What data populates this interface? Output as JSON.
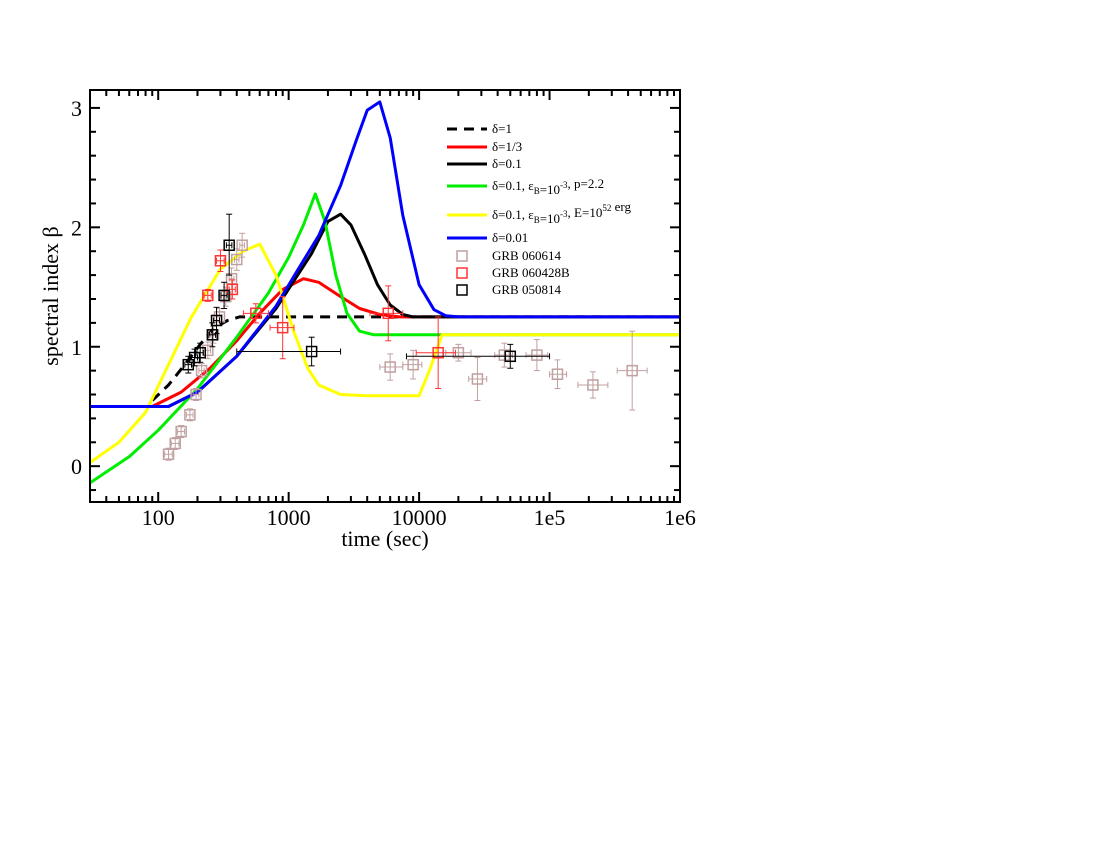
{
  "chart_data": {
    "type": "line",
    "title": "",
    "xlabel": "time (sec)",
    "ylabel": "spectral index β",
    "x_scale": "log",
    "xlim": [
      30,
      1000000
    ],
    "ylim": [
      -0.3,
      3.15
    ],
    "x_ticks": [
      {
        "value": 100,
        "label": "100"
      },
      {
        "value": 1000,
        "label": "1000"
      },
      {
        "value": 10000,
        "label": "10000"
      },
      {
        "value": 100000,
        "label": "1e5"
      },
      {
        "value": 1000000,
        "label": "1e6"
      }
    ],
    "y_ticks": [
      {
        "value": 0,
        "label": "0"
      },
      {
        "value": 1,
        "label": "1"
      },
      {
        "value": 2,
        "label": "2"
      },
      {
        "value": 3,
        "label": "3"
      }
    ],
    "grid": false,
    "legend_position": "top-right",
    "series": [
      {
        "name": "δ=1",
        "color": "#000000",
        "dashed": true,
        "points": [
          [
            90,
            0.55
          ],
          [
            120,
            0.68
          ],
          [
            160,
            0.85
          ],
          [
            210,
            1.02
          ],
          [
            270,
            1.16
          ],
          [
            340,
            1.22
          ],
          [
            420,
            1.25
          ],
          [
            1000000,
            1.25
          ]
        ]
      },
      {
        "name": "δ=1/3",
        "color": "#ff0000",
        "dashed": false,
        "points": [
          [
            90,
            0.5
          ],
          [
            150,
            0.62
          ],
          [
            250,
            0.82
          ],
          [
            400,
            1.05
          ],
          [
            600,
            1.28
          ],
          [
            900,
            1.48
          ],
          [
            1300,
            1.57
          ],
          [
            1700,
            1.54
          ],
          [
            2500,
            1.42
          ],
          [
            3500,
            1.32
          ],
          [
            5000,
            1.27
          ],
          [
            7000,
            1.25
          ],
          [
            1000000,
            1.25
          ]
        ]
      },
      {
        "name": "δ=0.1",
        "color": "#000000",
        "dashed": false,
        "points": [
          [
            30,
            0.5
          ],
          [
            120,
            0.5
          ],
          [
            200,
            0.62
          ],
          [
            400,
            0.92
          ],
          [
            800,
            1.32
          ],
          [
            1500,
            1.78
          ],
          [
            2000,
            2.05
          ],
          [
            2500,
            2.11
          ],
          [
            3000,
            2.02
          ],
          [
            3800,
            1.78
          ],
          [
            4800,
            1.52
          ],
          [
            6000,
            1.35
          ],
          [
            7500,
            1.27
          ],
          [
            9000,
            1.25
          ],
          [
            1000000,
            1.25
          ]
        ]
      },
      {
        "name": "δ=0.1, εB=10^-3, p=2.2",
        "color": "#00ee00",
        "dashed": false,
        "points": [
          [
            30,
            -0.14
          ],
          [
            60,
            0.08
          ],
          [
            100,
            0.3
          ],
          [
            200,
            0.65
          ],
          [
            400,
            1.08
          ],
          [
            700,
            1.45
          ],
          [
            1000,
            1.75
          ],
          [
            1300,
            2.02
          ],
          [
            1600,
            2.28
          ],
          [
            1900,
            2.05
          ],
          [
            2300,
            1.6
          ],
          [
            2800,
            1.28
          ],
          [
            3500,
            1.13
          ],
          [
            4500,
            1.1
          ],
          [
            1000000,
            1.1
          ]
        ]
      },
      {
        "name": "δ=0.1, εB=10^-3, E=10^52 erg",
        "color": "#ffff00",
        "dashed": false,
        "points": [
          [
            30,
            0.03
          ],
          [
            50,
            0.2
          ],
          [
            80,
            0.45
          ],
          [
            120,
            0.85
          ],
          [
            180,
            1.25
          ],
          [
            300,
            1.65
          ],
          [
            450,
            1.8
          ],
          [
            600,
            1.86
          ],
          [
            800,
            1.6
          ],
          [
            1100,
            1.12
          ],
          [
            1400,
            0.82
          ],
          [
            1700,
            0.68
          ],
          [
            2500,
            0.6
          ],
          [
            4000,
            0.59
          ],
          [
            10000,
            0.59
          ],
          [
            12000,
            0.8
          ],
          [
            15000,
            1.1
          ],
          [
            1000000,
            1.1
          ]
        ]
      },
      {
        "name": "δ=0.01",
        "color": "#0000ff",
        "dashed": false,
        "points": [
          [
            30,
            0.5
          ],
          [
            120,
            0.5
          ],
          [
            200,
            0.62
          ],
          [
            400,
            0.92
          ],
          [
            800,
            1.34
          ],
          [
            1200,
            1.66
          ],
          [
            1700,
            1.93
          ],
          [
            2500,
            2.35
          ],
          [
            3300,
            2.73
          ],
          [
            4000,
            2.98
          ],
          [
            5000,
            3.05
          ],
          [
            6000,
            2.75
          ],
          [
            7500,
            2.1
          ],
          [
            10000,
            1.52
          ],
          [
            13000,
            1.31
          ],
          [
            16000,
            1.26
          ],
          [
            20000,
            1.25
          ],
          [
            1000000,
            1.25
          ]
        ]
      }
    ],
    "data_series": [
      {
        "name": "GRB 060614",
        "color": "#c0a0a0",
        "points": [
          {
            "x": 120,
            "y": 0.1,
            "xlo": 112,
            "xhi": 128,
            "ylo": 0.05,
            "yhi": 0.15
          },
          {
            "x": 135,
            "y": 0.19,
            "xlo": 126,
            "xhi": 144,
            "ylo": 0.14,
            "yhi": 0.24
          },
          {
            "x": 150,
            "y": 0.29,
            "xlo": 141,
            "xhi": 159,
            "ylo": 0.24,
            "yhi": 0.34
          },
          {
            "x": 175,
            "y": 0.43,
            "xlo": 165,
            "xhi": 185,
            "ylo": 0.38,
            "yhi": 0.48
          },
          {
            "x": 195,
            "y": 0.6,
            "xlo": 185,
            "xhi": 205,
            "ylo": 0.55,
            "yhi": 0.65
          },
          {
            "x": 215,
            "y": 0.8,
            "xlo": 205,
            "xhi": 225,
            "ylo": 0.74,
            "yhi": 0.86
          },
          {
            "x": 240,
            "y": 0.97,
            "xlo": 228,
            "xhi": 252,
            "ylo": 0.9,
            "yhi": 1.04
          },
          {
            "x": 265,
            "y": 1.1,
            "xlo": 252,
            "xhi": 278,
            "ylo": 1.03,
            "yhi": 1.17
          },
          {
            "x": 295,
            "y": 1.25,
            "xlo": 282,
            "xhi": 308,
            "ylo": 1.18,
            "yhi": 1.32
          },
          {
            "x": 330,
            "y": 1.42,
            "xlo": 315,
            "xhi": 345,
            "ylo": 1.34,
            "yhi": 1.5
          },
          {
            "x": 365,
            "y": 1.57,
            "xlo": 350,
            "xhi": 380,
            "ylo": 1.48,
            "yhi": 1.66
          },
          {
            "x": 400,
            "y": 1.73,
            "xlo": 384,
            "xhi": 416,
            "ylo": 1.64,
            "yhi": 1.82
          },
          {
            "x": 440,
            "y": 1.85,
            "xlo": 422,
            "xhi": 458,
            "ylo": 1.75,
            "yhi": 1.95
          },
          {
            "x": 6000,
            "y": 0.83,
            "xlo": 5000,
            "xhi": 7500,
            "ylo": 0.72,
            "yhi": 0.94
          },
          {
            "x": 9000,
            "y": 0.85,
            "xlo": 7500,
            "xhi": 10500,
            "ylo": 0.73,
            "yhi": 0.97
          },
          {
            "x": 20000,
            "y": 0.95,
            "xlo": 16000,
            "xhi": 25000,
            "ylo": 0.88,
            "yhi": 1.02
          },
          {
            "x": 28000,
            "y": 0.73,
            "xlo": 24000,
            "xhi": 33000,
            "ylo": 0.55,
            "yhi": 0.91
          },
          {
            "x": 45000,
            "y": 0.93,
            "xlo": 38000,
            "xhi": 52000,
            "ylo": 0.83,
            "yhi": 1.03
          },
          {
            "x": 80000,
            "y": 0.93,
            "xlo": 66000,
            "xhi": 97000,
            "ylo": 0.8,
            "yhi": 1.06
          },
          {
            "x": 115000,
            "y": 0.77,
            "xlo": 100000,
            "xhi": 135000,
            "ylo": 0.65,
            "yhi": 0.89
          },
          {
            "x": 215000,
            "y": 0.68,
            "xlo": 165000,
            "xhi": 280000,
            "ylo": 0.57,
            "yhi": 0.79
          },
          {
            "x": 430000,
            "y": 0.8,
            "xlo": 330000,
            "xhi": 560000,
            "ylo": 0.47,
            "yhi": 1.13
          }
        ]
      },
      {
        "name": "GRB 060428B",
        "color": "#ff3333",
        "points": [
          {
            "x": 240,
            "y": 1.43,
            "xlo": 225,
            "xhi": 255,
            "ylo": 1.38,
            "yhi": 1.48
          },
          {
            "x": 300,
            "y": 1.72,
            "xlo": 280,
            "xhi": 320,
            "ylo": 1.63,
            "yhi": 1.81
          },
          {
            "x": 370,
            "y": 1.48,
            "xlo": 350,
            "xhi": 390,
            "ylo": 1.4,
            "yhi": 1.56
          },
          {
            "x": 560,
            "y": 1.28,
            "xlo": 450,
            "xhi": 700,
            "ylo": 1.2,
            "yhi": 1.36
          },
          {
            "x": 900,
            "y": 1.16,
            "xlo": 720,
            "xhi": 1100,
            "ylo": 0.9,
            "yhi": 1.42
          },
          {
            "x": 5800,
            "y": 1.28,
            "xlo": 4200,
            "xhi": 7500,
            "ylo": 1.05,
            "yhi": 1.51
          },
          {
            "x": 14000,
            "y": 0.95,
            "xlo": 9500,
            "xhi": 19000,
            "ylo": 0.65,
            "yhi": 1.25
          }
        ]
      },
      {
        "name": "GRB 050814",
        "color": "#000000",
        "points": [
          {
            "x": 170,
            "y": 0.85,
            "xlo": 160,
            "xhi": 180,
            "ylo": 0.78,
            "yhi": 0.92
          },
          {
            "x": 190,
            "y": 0.91,
            "xlo": 180,
            "xhi": 200,
            "ylo": 0.84,
            "yhi": 0.98
          },
          {
            "x": 210,
            "y": 0.95,
            "xlo": 198,
            "xhi": 222,
            "ylo": 0.87,
            "yhi": 1.03
          },
          {
            "x": 260,
            "y": 1.1,
            "xlo": 245,
            "xhi": 275,
            "ylo": 1.0,
            "yhi": 1.2
          },
          {
            "x": 280,
            "y": 1.22,
            "xlo": 265,
            "xhi": 295,
            "ylo": 1.11,
            "yhi": 1.33
          },
          {
            "x": 320,
            "y": 1.43,
            "xlo": 303,
            "xhi": 337,
            "ylo": 1.32,
            "yhi": 1.54
          },
          {
            "x": 350,
            "y": 1.85,
            "xlo": 333,
            "xhi": 367,
            "ylo": 1.6,
            "yhi": 2.11
          },
          {
            "x": 1500,
            "y": 0.96,
            "xlo": 400,
            "xhi": 2500,
            "ylo": 0.84,
            "yhi": 1.08
          },
          {
            "x": 50000,
            "y": 0.92,
            "xlo": 8000,
            "xhi": 100000,
            "ylo": 0.82,
            "yhi": 1.02
          }
        ]
      }
    ]
  }
}
